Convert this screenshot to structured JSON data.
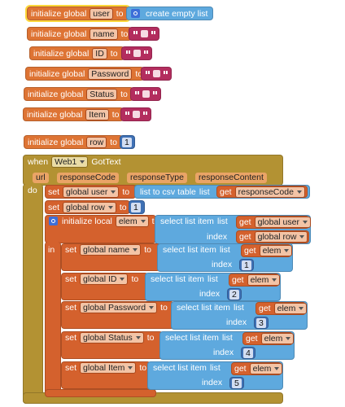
{
  "global_blocks": [
    {
      "keyword": "initialize global",
      "name": "user",
      "to": "to",
      "value": "create empty list"
    },
    {
      "keyword": "initialize global",
      "name": "name",
      "to": "to"
    },
    {
      "keyword": "initialize global",
      "name": "ID",
      "to": "to"
    },
    {
      "keyword": "initialize global",
      "name": "Password",
      "to": "to"
    },
    {
      "keyword": "initialize global",
      "name": "Status",
      "to": "to"
    },
    {
      "keyword": "initialize global",
      "name": "Item",
      "to": "to"
    },
    {
      "keyword": "initialize global",
      "name": "row",
      "to": "to",
      "value": 1
    }
  ],
  "event": {
    "when": "when",
    "component": "Web1",
    "event": "GotText",
    "params": [
      "url",
      "responseCode",
      "responseType",
      "responseContent"
    ],
    "do": "do",
    "statements": [
      {
        "set": "set",
        "variable": "global user",
        "to": "to",
        "call": "list to csv table",
        "arg": "list",
        "get": "get",
        "get_var": "responseCode"
      },
      {
        "set": "set",
        "variable": "global row",
        "to": "to",
        "value": 1
      },
      {
        "keyword": "initialize local",
        "variable": "elem",
        "to": "to",
        "call": "select list item",
        "list_arg": "list",
        "list_get": "get",
        "list_var": "global user",
        "index_arg": "index",
        "index_get": "get",
        "index_var": "global row",
        "in": "in",
        "body": [
          {
            "set": "set",
            "variable": "global name",
            "to": "to",
            "call": "select list item",
            "list_arg": "list",
            "get": "get",
            "get_var": "elem",
            "index_arg": "index",
            "index": 1
          },
          {
            "set": "set",
            "variable": "global ID",
            "to": "to",
            "call": "select list item",
            "list_arg": "list",
            "get": "get",
            "get_var": "elem",
            "index_arg": "index",
            "index": 2
          },
          {
            "set": "set",
            "variable": "global Password",
            "to": "to",
            "call": "select list item",
            "list_arg": "list",
            "get": "get",
            "get_var": "elem",
            "index_arg": "index",
            "index": 3
          },
          {
            "set": "set",
            "variable": "global Status",
            "to": "to",
            "call": "select list item",
            "list_arg": "list",
            "get": "get",
            "get_var": "elem",
            "index_arg": "index",
            "index": 4
          },
          {
            "set": "set",
            "variable": "global Item",
            "to": "to",
            "call": "select list item",
            "list_arg": "list",
            "get": "get",
            "get_var": "elem",
            "index_arg": "index",
            "index": 5
          }
        ]
      }
    ]
  }
}
